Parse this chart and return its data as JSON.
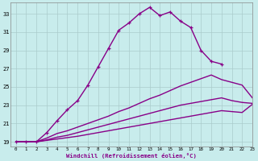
{
  "xlabel": "Windchill (Refroidissement éolien,°C)",
  "xlim": [
    -0.5,
    23
  ],
  "ylim": [
    18.5,
    34.2
  ],
  "xticks": [
    0,
    1,
    2,
    3,
    4,
    5,
    6,
    7,
    8,
    9,
    10,
    11,
    12,
    13,
    14,
    15,
    16,
    17,
    18,
    19,
    20,
    21,
    22,
    23
  ],
  "yticks": [
    19,
    21,
    23,
    25,
    27,
    29,
    31,
    33
  ],
  "bg_color": "#c8ecec",
  "line_color": "#880088",
  "grid_color": "#aacccc",
  "lines": [
    {
      "x": [
        0,
        1,
        2,
        3,
        4,
        5,
        6,
        7,
        8,
        9,
        10,
        11,
        12,
        13,
        14,
        15,
        16,
        17,
        18,
        19,
        20
      ],
      "y": [
        19,
        19,
        19,
        20.0,
        21.3,
        22.5,
        23.5,
        25.2,
        27.2,
        29.2,
        31.2,
        32.0,
        33.0,
        33.7,
        32.8,
        33.2,
        32.2,
        31.5,
        29.0,
        27.8,
        27.5
      ],
      "marker": true,
      "linewidth": 1.0
    },
    {
      "x": [
        0,
        1,
        2,
        3,
        4,
        5,
        6,
        7,
        8,
        9,
        10,
        11,
        12,
        13,
        14,
        15,
        16,
        17,
        18,
        19,
        20,
        21,
        22,
        23
      ],
      "y": [
        19,
        19,
        19,
        19.4,
        19.9,
        20.2,
        20.6,
        21.0,
        21.4,
        21.8,
        22.3,
        22.7,
        23.2,
        23.7,
        24.1,
        24.6,
        25.1,
        25.5,
        25.9,
        26.3,
        25.8,
        25.5,
        25.2,
        23.8
      ],
      "marker": false,
      "linewidth": 1.0
    },
    {
      "x": [
        0,
        1,
        2,
        3,
        4,
        5,
        6,
        7,
        8,
        9,
        10,
        11,
        12,
        13,
        14,
        15,
        16,
        17,
        18,
        19,
        20,
        21,
        22,
        23
      ],
      "y": [
        19,
        19,
        19,
        19.2,
        19.5,
        19.7,
        20.0,
        20.3,
        20.6,
        20.9,
        21.2,
        21.5,
        21.8,
        22.1,
        22.4,
        22.7,
        23.0,
        23.2,
        23.4,
        23.6,
        23.8,
        23.5,
        23.3,
        23.2
      ],
      "marker": false,
      "linewidth": 1.0
    },
    {
      "x": [
        0,
        1,
        2,
        3,
        4,
        5,
        6,
        7,
        8,
        9,
        10,
        11,
        12,
        13,
        14,
        15,
        16,
        17,
        18,
        19,
        20,
        21,
        22,
        23
      ],
      "y": [
        19,
        19,
        19,
        19.15,
        19.3,
        19.45,
        19.6,
        19.8,
        20.0,
        20.2,
        20.4,
        20.6,
        20.8,
        21.0,
        21.2,
        21.4,
        21.6,
        21.8,
        22.0,
        22.2,
        22.4,
        22.3,
        22.2,
        23.1
      ],
      "marker": false,
      "linewidth": 1.0
    }
  ]
}
